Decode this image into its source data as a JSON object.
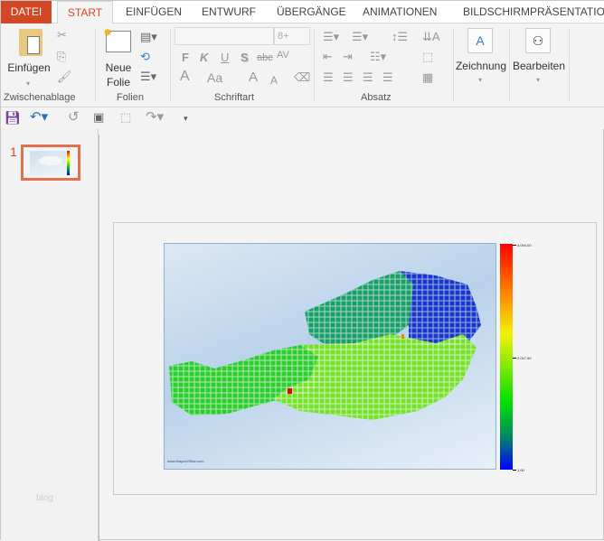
{
  "tabs": [
    "DATEI",
    "START",
    "EINFÜGEN",
    "ENTWURF",
    "ÜBERGÄNGE",
    "ANIMATIONEN",
    "BILDSCHIRMPRÄSENTATION"
  ],
  "ribbon": {
    "clipboard": {
      "paste": "Einfügen",
      "group": "Zwischenablage"
    },
    "slides": {
      "new_slide_1": "Neue",
      "new_slide_2": "Folie",
      "group": "Folien"
    },
    "font": {
      "font_name": "",
      "font_size": "8+",
      "bold": "F",
      "italic": "K",
      "underline": "U",
      "shadow": "S",
      "strike": "abc",
      "spacing": "AV",
      "color": "A",
      "case": "Aa",
      "grow": "A",
      "shrink": "A",
      "group": "Schriftart"
    },
    "paragraph": {
      "group": "Absatz"
    },
    "drawing": {
      "label": "Zeichnung"
    },
    "editing": {
      "label": "Bearbeiten"
    }
  },
  "thumbnails": [
    {
      "number": "1"
    }
  ],
  "panel_watermark": "blog",
  "slide": {
    "map_credit": "www.Maps4Office.com",
    "legend": {
      "max": "4.094,00",
      "mid": "2.047,50",
      "min": "1,00"
    },
    "colors": {
      "max": "#ff0000",
      "mid": "#00e000",
      "min": "#0000ff"
    }
  },
  "accent": "#d24726"
}
